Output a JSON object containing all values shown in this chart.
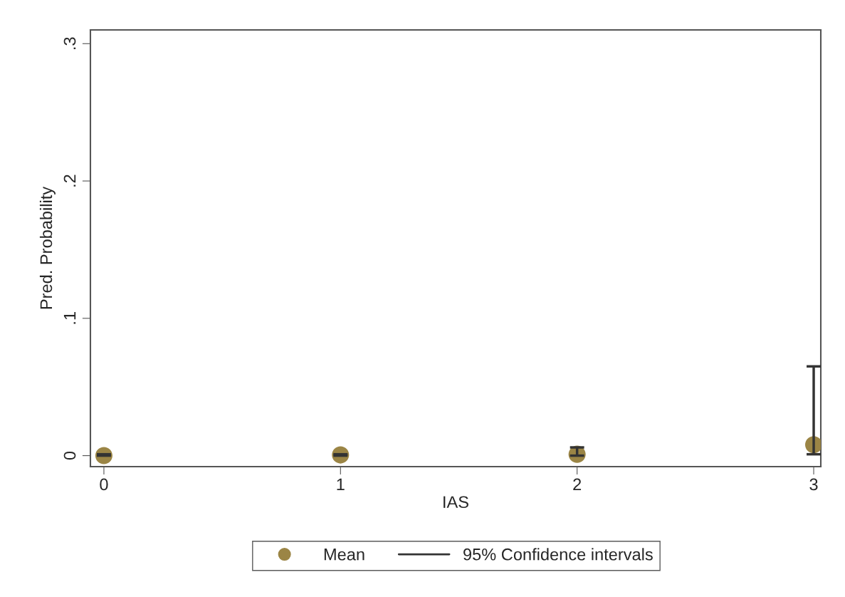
{
  "chart_data": {
    "type": "scatter",
    "xlabel": "IAS",
    "ylabel": "Pred. Probability",
    "x": [
      0,
      1,
      2,
      3
    ],
    "series": [
      {
        "name": "Mean",
        "color": "#9b8545",
        "values": [
          0.0,
          0.0005,
          0.001,
          0.008
        ],
        "errors": [
          [
            0.0,
            0.001
          ],
          [
            0.0,
            0.001
          ],
          [
            0.0,
            0.006
          ],
          [
            0.001,
            0.065
          ]
        ]
      }
    ],
    "annotations": [
      "95% Confidence intervals"
    ],
    "xlim": [
      -0.057,
      3.03
    ],
    "ylim": [
      -0.008,
      0.31
    ],
    "xticks": [
      0,
      1,
      2,
      3
    ],
    "yticks": [
      {
        "value": 0,
        "label": "0"
      },
      {
        "value": 0.1,
        "label": ".1"
      },
      {
        "value": 0.2,
        "label": ".2"
      },
      {
        "value": 0.3,
        "label": ".3"
      }
    ],
    "grid": false,
    "legend": "bottom",
    "marker": "circle"
  }
}
